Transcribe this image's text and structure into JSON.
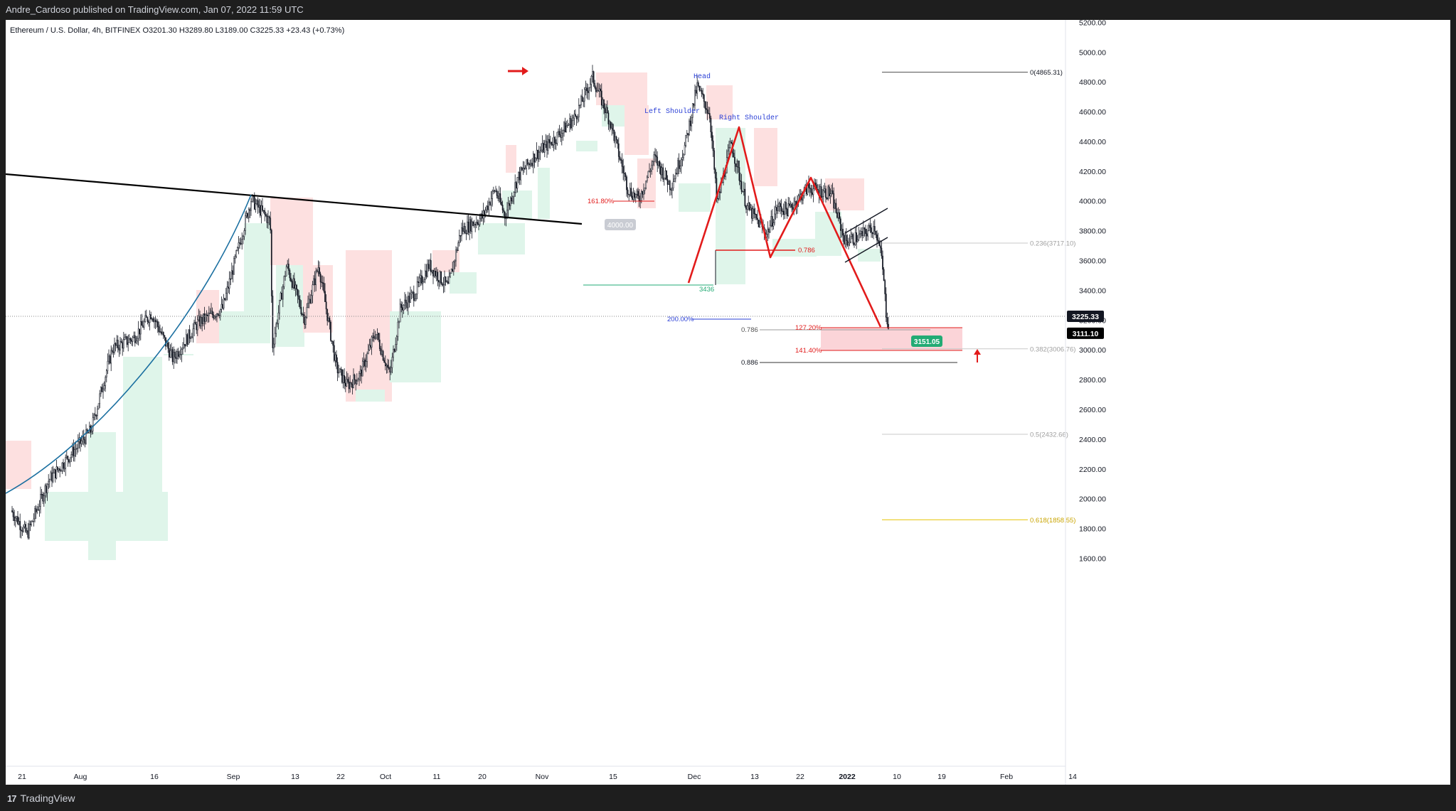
{
  "publisher_line": "Andre_Cardoso published on TradingView.com, Jan 07, 2022 11:59 UTC",
  "footer": {
    "logo": "17",
    "brand": "TradingView"
  },
  "chart_data": {
    "type": "candlestick",
    "symbol_header": "Ethereum / U.S. Dollar, 4h, BITFINEX  O3201.30  H3289.80  L3189.00  C3225.33  +23.43 (+0.73%)",
    "ohlc": {
      "open": 3201.3,
      "high": 3289.8,
      "low": 3189.0,
      "close": 3225.33,
      "change": 23.43,
      "change_pct": 0.73
    },
    "x_ticks": [
      "21",
      "Aug",
      "16",
      "Sep",
      "13",
      "22",
      "Oct",
      "11",
      "20",
      "Nov",
      "15",
      "Dec",
      "13",
      "22",
      "2022",
      "10",
      "19",
      "Feb",
      "14"
    ],
    "y_ticks": [
      "5200.00",
      "5000.00",
      "4800.00",
      "4600.00",
      "4400.00",
      "4200.00",
      "4000.00",
      "3800.00",
      "3600.00",
      "3400.00",
      "3200.00",
      "3000.00",
      "2800.00",
      "2600.00",
      "2400.00",
      "2200.00",
      "2000.00",
      "1800.00",
      "1600.00"
    ],
    "ylim": [
      1500,
      5250
    ],
    "price_markers": [
      {
        "label": "3225.33",
        "value": 3225.33,
        "style": "dark"
      },
      {
        "label": "3111.10",
        "value": 3111.1,
        "style": "black"
      }
    ],
    "fib_retracement": [
      {
        "label": "0(4865.31)",
        "value": 4865.31,
        "color": "#555555"
      },
      {
        "label": "0.236(3717.10)",
        "value": 3717.1,
        "color": "#c8c8c8"
      },
      {
        "label": "0.382(3006.76)",
        "value": 3006.76,
        "color": "#c8c8c8"
      },
      {
        "label": "0.5(2432.66)",
        "value": 2432.66,
        "color": "#c8c8c8"
      },
      {
        "label": "0.618(1858.55)",
        "value": 1858.55,
        "color": "#e6c200"
      }
    ],
    "annotations": {
      "head": "Head",
      "left_shoulder": "Left Shoulder",
      "right_shoulder": "Right Shoulder",
      "ext_161": "161.80%",
      "ext_200": "200.00%",
      "level_3436": "3436",
      "badge_4000": "4000.00",
      "xabcd_786": "0.786",
      "proj_786": "0.786",
      "proj_886": "0.886",
      "ext_127": "127.20%",
      "ext_141": "141.40%",
      "target_badge": "3151.05"
    },
    "colors": {
      "bull_zone": "#dff5ea",
      "bear_zone": "#fde0e0",
      "trendline": "#000000",
      "curve": "#1a6fa0",
      "pattern": "#e21b1b",
      "text_blue": "#2a3fd6",
      "green_text": "#22ab74"
    }
  }
}
